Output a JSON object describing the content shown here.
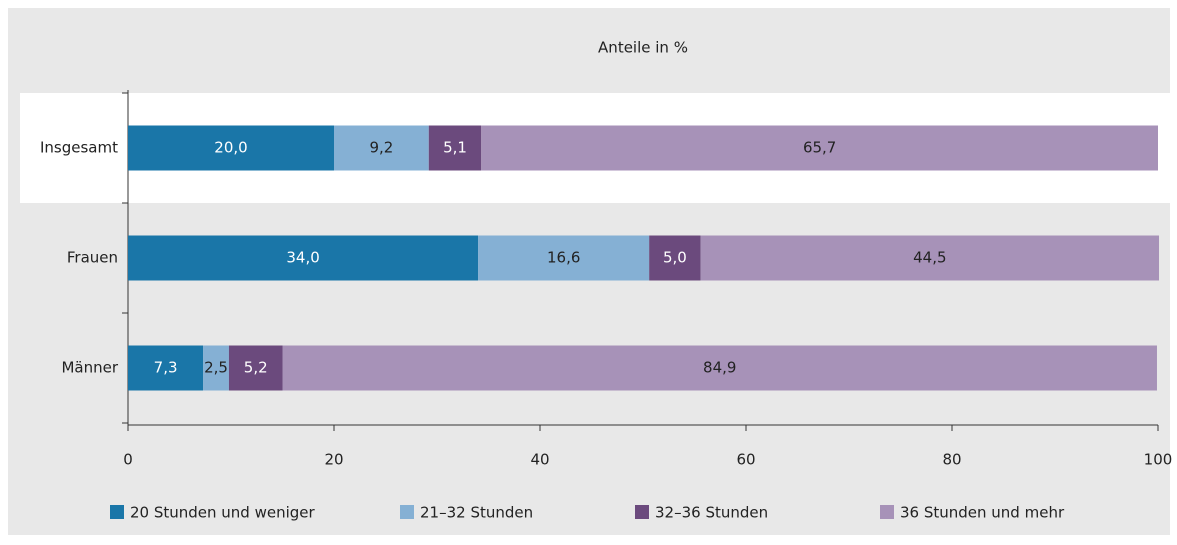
{
  "chart_data": {
    "type": "stacked_barh",
    "title": "Anteile in %",
    "categories": [
      "Insgesamt",
      "Frauen",
      "Männer"
    ],
    "series": [
      {
        "name": "20 Stunden und weniger",
        "color": "#1a76a8",
        "values": [
          20.0,
          34.0,
          7.3
        ],
        "value_labels": [
          "20,0",
          "34,0",
          "7,3"
        ]
      },
      {
        "name": "21–32 Stunden",
        "color": "#85b0d4",
        "values": [
          9.2,
          16.6,
          2.5
        ],
        "value_labels": [
          "9,2",
          "16,6",
          "2,5"
        ]
      },
      {
        "name": "32–36 Stunden",
        "color": "#6b4a7d",
        "values": [
          5.1,
          5.0,
          5.2
        ],
        "value_labels": [
          "5,1",
          "5,0",
          "5,2"
        ]
      },
      {
        "name": "36 Stunden und mehr",
        "color": "#a792b8",
        "values": [
          65.7,
          44.5,
          84.9
        ],
        "value_labels": [
          "65,7",
          "44,5",
          "84,9"
        ]
      }
    ],
    "xlim": [
      0,
      100
    ],
    "xticks": [
      0,
      20,
      40,
      60,
      80,
      100
    ],
    "legend": "bottom"
  }
}
